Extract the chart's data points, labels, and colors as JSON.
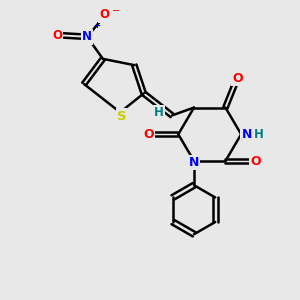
{
  "background_color": "#e8e8e8",
  "bond_color": "#000000",
  "atom_colors": {
    "S": "#cccc00",
    "N": "#0000ff",
    "O": "#ff0000",
    "H": "#008080",
    "C": "#000000"
  },
  "figsize": [
    3.0,
    3.0
  ],
  "dpi": 100
}
